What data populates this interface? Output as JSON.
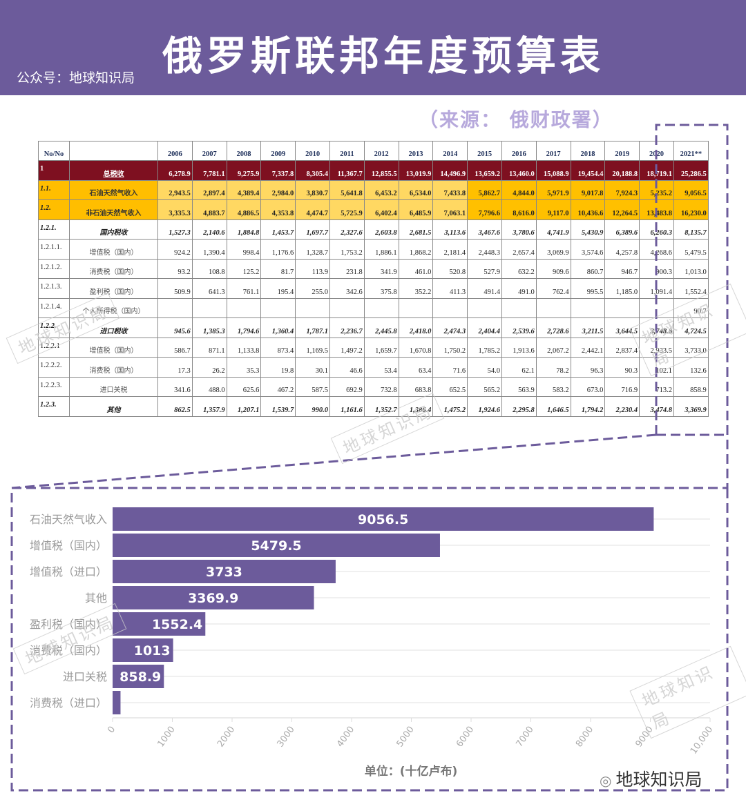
{
  "header": {
    "title": "俄罗斯联邦年度预算表",
    "account": "公众号：地球知识局",
    "bg_color": "#6c5b9b"
  },
  "source": "（来源： 俄财政署）",
  "table": {
    "no_header": "No/No",
    "years": [
      "2006",
      "2007",
      "2008",
      "2009",
      "2010",
      "2011",
      "2012",
      "2013",
      "2014",
      "2015",
      "2016",
      "2017",
      "2018",
      "2019",
      "2020",
      "2021**"
    ],
    "rows": [
      {
        "no": "1",
        "label": "总税收",
        "style": "total",
        "values": [
          "6,278.9",
          "7,781.1",
          "9,275.9",
          "7,337.8",
          "8,305.4",
          "11,367.7",
          "12,855.5",
          "13,019.9",
          "14,496.9",
          "13,659.2",
          "13,460.0",
          "15,088.9",
          "19,454.4",
          "20,188.8",
          "18,719.1",
          "25,286.5"
        ]
      },
      {
        "no": "1.1.",
        "label": "石油天然气收入",
        "style": "oil",
        "values": [
          "2,943.5",
          "2,897.4",
          "4,389.4",
          "2,984.0",
          "3,830.7",
          "5,641.8",
          "6,453.2",
          "6,534.0",
          "7,433.8",
          "5,862.7",
          "4,844.0",
          "5,971.9",
          "9,017.8",
          "7,924.3",
          "5,235.2",
          "9,056.5"
        ]
      },
      {
        "no": "1.2.",
        "label": "非石油天然气收入",
        "style": "oil",
        "values": [
          "3,335.3",
          "4,883.7",
          "4,886.5",
          "4,353.8",
          "4,474.7",
          "5,725.9",
          "6,402.4",
          "6,485.9",
          "7,063.1",
          "7,796.6",
          "8,616.0",
          "9,117.0",
          "10,436.6",
          "12,264.5",
          "13,483.8",
          "16,230.0"
        ]
      },
      {
        "no": "1.2.1.",
        "label": "国内税收",
        "style": "sub",
        "values": [
          "1,527.3",
          "2,140.6",
          "1,884.8",
          "1,453.7",
          "1,697.7",
          "2,327.6",
          "2,603.8",
          "2,681.5",
          "3,113.6",
          "3,467.6",
          "3,780.6",
          "4,741.9",
          "5,430.9",
          "6,389.6",
          "6,260.3",
          "8,135.7"
        ]
      },
      {
        "no": "1.2.1.1.",
        "label": "增值税（国内）",
        "style": "",
        "values": [
          "924.2",
          "1,390.4",
          "998.4",
          "1,176.6",
          "1,328.7",
          "1,753.2",
          "1,886.1",
          "1,868.2",
          "2,181.4",
          "2,448.3",
          "2,657.4",
          "3,069.9",
          "3,574.6",
          "4,257.8",
          "4,268.6",
          "5,479.5"
        ]
      },
      {
        "no": "1.2.1.2.",
        "label": "消费税（国内）",
        "style": "",
        "values": [
          "93.2",
          "108.8",
          "125.2",
          "81.7",
          "113.9",
          "231.8",
          "341.9",
          "461.0",
          "520.8",
          "527.9",
          "632.2",
          "909.6",
          "860.7",
          "946.7",
          "900.3",
          "1,013.0"
        ]
      },
      {
        "no": "1.2.1.3.",
        "label": "盈利税（国内）",
        "style": "",
        "values": [
          "509.9",
          "641.3",
          "761.1",
          "195.4",
          "255.0",
          "342.6",
          "375.8",
          "352.2",
          "411.3",
          "491.4",
          "491.0",
          "762.4",
          "995.5",
          "1,185.0",
          "1,091.4",
          "1,552.4"
        ]
      },
      {
        "no": "1.2.1.4.",
        "label": "个人所得税（国内）",
        "style": "",
        "values": [
          "",
          "",
          "",
          "",
          "",
          "",
          "",
          "",
          "",
          "",
          "",
          "",
          "",
          "",
          "",
          "90.7"
        ]
      },
      {
        "no": "1.2.2.",
        "label": "进口税收",
        "style": "sub",
        "values": [
          "945.6",
          "1,385.3",
          "1,794.6",
          "1,360.4",
          "1,787.1",
          "2,236.7",
          "2,445.8",
          "2,418.0",
          "2,474.3",
          "2,404.4",
          "2,539.6",
          "2,728.6",
          "3,211.5",
          "3,644.5",
          "3,748.8",
          "4,724.5"
        ]
      },
      {
        "no": "1.2.2.1",
        "label": "增值税（国内）",
        "style": "",
        "values": [
          "586.7",
          "871.1",
          "1,133.8",
          "873.4",
          "1,169.5",
          "1,497.2",
          "1,659.7",
          "1,670.8",
          "1,750.2",
          "1,785.2",
          "1,913.6",
          "2,067.2",
          "2,442.1",
          "2,837.4",
          "2,933.5",
          "3,733.0"
        ]
      },
      {
        "no": "1.2.2.2.",
        "label": "消费税（国内）",
        "style": "",
        "values": [
          "17.3",
          "26.2",
          "35.3",
          "19.8",
          "30.1",
          "46.6",
          "53.4",
          "63.4",
          "71.6",
          "54.0",
          "62.1",
          "78.2",
          "96.3",
          "90.3",
          "102.1",
          "132.6"
        ]
      },
      {
        "no": "1.2.2.3.",
        "label": "进口关税",
        "style": "",
        "values": [
          "341.6",
          "488.0",
          "625.6",
          "467.2",
          "587.5",
          "692.9",
          "732.8",
          "683.8",
          "652.5",
          "565.2",
          "563.9",
          "583.2",
          "673.0",
          "716.9",
          "713.2",
          "858.9"
        ]
      },
      {
        "no": "1.2.3.",
        "label": "其他",
        "style": "sub",
        "values": [
          "862.5",
          "1,357.9",
          "1,207.1",
          "1,539.7",
          "990.0",
          "1,161.6",
          "1,352.7",
          "1,386.4",
          "1,475.2",
          "1,924.6",
          "2,295.8",
          "1,646.5",
          "1,794.2",
          "2,230.4",
          "3,474.8",
          "3,369.9"
        ]
      }
    ]
  },
  "chart_data": {
    "type": "bar",
    "orientation": "horizontal",
    "categories": [
      "石油天然气收入",
      "增值税（国内）",
      "增值税（进口）",
      "其他",
      "盈利税（国内）",
      "消费税（国内）",
      "进口关税",
      "消费税（进口）"
    ],
    "values": [
      9056.5,
      5479.5,
      3733,
      3369.9,
      1552.4,
      1013,
      858.9,
      132.6
    ],
    "data_labels": [
      "9056.5",
      "5479.5",
      "3733",
      "3369.9",
      "1552.4",
      "1013",
      "858.9",
      ""
    ],
    "xlim": [
      0,
      10000
    ],
    "ticks": [
      "0",
      "1000",
      "2000",
      "3000",
      "4000",
      "5000",
      "6000",
      "7000",
      "8000",
      "9000",
      "10,000"
    ],
    "xlabel": "单位：(十亿卢布)",
    "grid": true,
    "bar_color": "#6c5b9b"
  },
  "watermark": "地球知识局",
  "footer": {
    "wechat_name": "地球知识局",
    "icon": "wechat-icon"
  }
}
